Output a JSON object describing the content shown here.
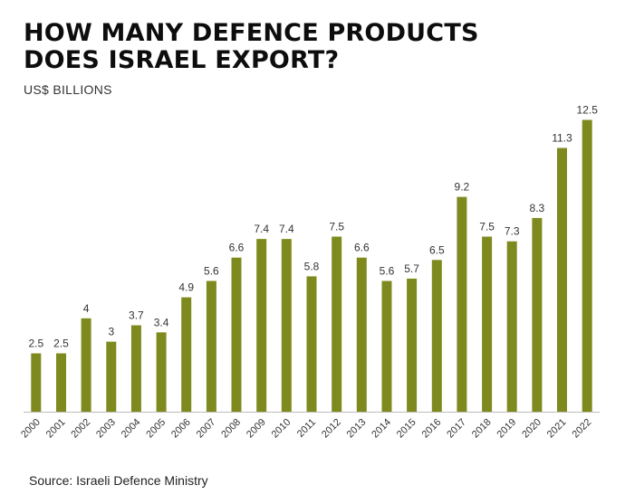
{
  "header": {
    "title_line1": "HOW MANY DEFENCE PRODUCTS",
    "title_line2": "DOES ISRAEL EXPORT?",
    "unit": "US$ BILLIONS"
  },
  "footer": {
    "source": "Source: Israeli Defence Ministry"
  },
  "colors": {
    "bar": "#7e8a1e",
    "axis": "#bdbdbd"
  },
  "chart_data": {
    "type": "bar",
    "title": "HOW MANY DEFENCE PRODUCTS DOES ISRAEL EXPORT?",
    "xlabel": "",
    "ylabel": "US$ BILLIONS",
    "ylim": [
      0,
      13
    ],
    "grid": false,
    "categories": [
      "2000",
      "2001",
      "2002",
      "2003",
      "2004",
      "2005",
      "2006",
      "2007",
      "2008",
      "2009",
      "2010",
      "2011",
      "2012",
      "2013",
      "2014",
      "2015",
      "2016",
      "2017",
      "2018",
      "2019",
      "2020",
      "2021",
      "2022"
    ],
    "values": [
      2.5,
      2.5,
      4,
      3,
      3.7,
      3.4,
      4.9,
      5.6,
      6.6,
      7.4,
      7.4,
      5.8,
      7.5,
      6.6,
      5.6,
      5.7,
      6.5,
      9.2,
      7.5,
      7.3,
      8.3,
      11.3,
      12.5
    ],
    "value_labels": [
      "2.5",
      "2.5",
      "4",
      "3",
      "3.7",
      "3.4",
      "4.9",
      "5.6",
      "6.6",
      "7.4",
      "7.4",
      "5.8",
      "7.5",
      "6.6",
      "5.6",
      "5.7",
      "6.5",
      "9.2",
      "7.5",
      "7.3",
      "8.3",
      "11.3",
      "12.5"
    ]
  }
}
